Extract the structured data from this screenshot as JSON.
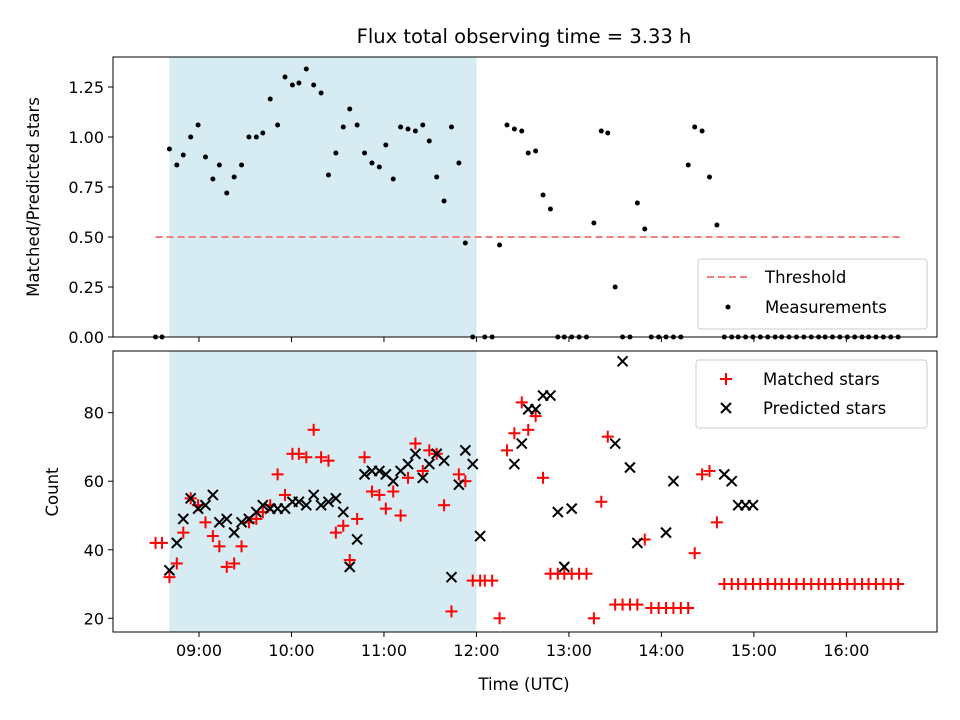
{
  "chart_data": [
    {
      "type": "scatter",
      "title": "Flux total observing time = 3.33 h",
      "ylabel": "Matched/Predicted stars",
      "xlabel": "",
      "xlim": [
        8.07,
        16.98
      ],
      "ylim": [
        0,
        1.4
      ],
      "y_ticks": [
        0.0,
        0.25,
        0.5,
        0.75,
        1.0,
        1.25
      ],
      "y_tick_labels": [
        "0.00",
        "0.25",
        "0.50",
        "0.75",
        "1.00",
        "1.25"
      ],
      "shaded_interval": [
        8.68,
        12.0
      ],
      "shaded_color": "#add8e6",
      "legend_position": "lower-right",
      "threshold": {
        "name": "Threshold",
        "value": 0.5,
        "x_range": [
          8.53,
          16.6
        ],
        "color": "#f08080"
      },
      "series": [
        {
          "name": "Measurements",
          "color": "#000000",
          "marker": "dot",
          "x": [
            8.53,
            8.6,
            8.68,
            8.76,
            8.83,
            8.91,
            8.99,
            9.07,
            9.15,
            9.22,
            9.3,
            9.38,
            9.46,
            9.54,
            9.62,
            9.69,
            9.77,
            9.85,
            9.93,
            10.01,
            10.08,
            10.16,
            10.24,
            10.32,
            10.4,
            10.48,
            10.56,
            10.63,
            10.71,
            10.79,
            10.87,
            10.95,
            11.02,
            11.1,
            11.18,
            11.26,
            11.34,
            11.42,
            11.49,
            11.57,
            11.65,
            11.73,
            11.81,
            11.88,
            11.96,
            12.09,
            12.17,
            12.25,
            12.33,
            12.41,
            12.49,
            12.56,
            12.64,
            12.72,
            12.8,
            12.88,
            12.95,
            13.03,
            13.11,
            13.19,
            13.27,
            13.35,
            13.42,
            13.5,
            13.58,
            13.66,
            13.74,
            13.82,
            13.89,
            13.97,
            14.05,
            14.13,
            14.21,
            14.29,
            14.36,
            14.44,
            14.52,
            14.6,
            14.68,
            14.76,
            14.83,
            14.91,
            14.99,
            15.07,
            15.15,
            15.23,
            15.3,
            15.38,
            15.46,
            15.54,
            15.62,
            15.7,
            15.77,
            15.85,
            15.93,
            16.01,
            16.09,
            16.17,
            16.24,
            16.32,
            16.4,
            16.48,
            16.56
          ],
          "y": [
            0,
            0,
            0.94,
            0.86,
            0.91,
            1.0,
            1.06,
            0.9,
            0.79,
            0.86,
            0.72,
            0.8,
            0.86,
            1.0,
            1.0,
            1.02,
            1.19,
            1.06,
            1.3,
            1.26,
            1.27,
            1.34,
            1.26,
            1.22,
            0.81,
            0.92,
            1.05,
            1.14,
            1.06,
            0.92,
            0.87,
            0.85,
            0.96,
            0.79,
            1.05,
            1.04,
            1.03,
            1.06,
            0.98,
            0.8,
            0.68,
            1.05,
            0.87,
            0.47,
            0,
            0,
            0,
            0.46,
            1.06,
            1.04,
            1.03,
            0.92,
            0.93,
            0.71,
            0.64,
            0,
            0,
            0,
            0,
            0,
            0.57,
            1.03,
            1.02,
            0.25,
            0,
            0,
            0.67,
            0.54,
            0,
            0,
            0,
            0,
            0,
            0.86,
            1.05,
            1.03,
            0.8,
            0.56,
            0,
            0,
            0,
            0,
            0,
            0,
            0,
            0,
            0,
            0,
            0,
            0,
            0,
            0,
            0,
            0,
            0,
            0,
            0,
            0,
            0,
            0,
            0,
            0,
            0
          ]
        }
      ]
    },
    {
      "type": "scatter",
      "title": "",
      "xlabel": "Time (UTC)",
      "ylabel": "Count",
      "xlim": [
        8.07,
        16.98
      ],
      "ylim": [
        16,
        98
      ],
      "x_ticks": [
        9,
        10,
        11,
        12,
        13,
        14,
        15,
        16
      ],
      "x_tick_labels": [
        "09:00",
        "10:00",
        "11:00",
        "12:00",
        "13:00",
        "14:00",
        "15:00",
        "16:00"
      ],
      "y_ticks": [
        20,
        40,
        60,
        80
      ],
      "y_tick_labels": [
        "20",
        "40",
        "60",
        "80"
      ],
      "shaded_interval": [
        8.68,
        12.0
      ],
      "shaded_color": "#add8e6",
      "legend_position": "top-right",
      "series": [
        {
          "name": "Matched stars",
          "color": "#ff0000",
          "marker": "plus",
          "x": [
            8.53,
            8.6,
            8.68,
            8.76,
            8.83,
            8.91,
            8.99,
            9.07,
            9.15,
            9.22,
            9.3,
            9.38,
            9.46,
            9.54,
            9.62,
            9.69,
            9.77,
            9.85,
            9.93,
            10.01,
            10.08,
            10.16,
            10.24,
            10.32,
            10.4,
            10.48,
            10.56,
            10.63,
            10.71,
            10.79,
            10.87,
            10.95,
            11.02,
            11.1,
            11.18,
            11.26,
            11.34,
            11.42,
            11.49,
            11.57,
            11.65,
            11.73,
            11.81,
            11.88,
            11.96,
            12.04,
            12.09,
            12.17,
            12.25,
            12.33,
            12.41,
            12.49,
            12.56,
            12.64,
            12.72,
            12.8,
            12.88,
            12.95,
            13.03,
            13.11,
            13.19,
            13.27,
            13.35,
            13.42,
            13.5,
            13.58,
            13.66,
            13.74,
            13.82,
            13.89,
            13.97,
            14.05,
            14.13,
            14.21,
            14.29,
            14.36,
            14.44,
            14.52,
            14.6,
            14.68,
            14.76,
            14.83,
            14.91,
            14.99,
            15.07,
            15.15,
            15.23,
            15.3,
            15.38,
            15.46,
            15.54,
            15.62,
            15.7,
            15.77,
            15.85,
            15.93,
            16.01,
            16.09,
            16.17,
            16.24,
            16.32,
            16.4,
            16.48,
            16.56
          ],
          "y": [
            42,
            42,
            32,
            36,
            45,
            55,
            53,
            48,
            44,
            41,
            35,
            36,
            41,
            48,
            49,
            51,
            53,
            62,
            56,
            68,
            68,
            67,
            75,
            67,
            66,
            45,
            47,
            37,
            49,
            67,
            57,
            56,
            52,
            57,
            50,
            61,
            71,
            63,
            69,
            68,
            53,
            22,
            62,
            60,
            31,
            31,
            31,
            31,
            20,
            69,
            74,
            83,
            75,
            79,
            61,
            33,
            33,
            33,
            33,
            33,
            33,
            20,
            54,
            73,
            24,
            24,
            24,
            24,
            43,
            23,
            23,
            23,
            23,
            23,
            23,
            39,
            62,
            63,
            48,
            30,
            30,
            30,
            30,
            30,
            30,
            30,
            30,
            30,
            30,
            30,
            30,
            30,
            30,
            30,
            30,
            30,
            30,
            30,
            30,
            30,
            30,
            30,
            30,
            30
          ]
        },
        {
          "name": "Predicted stars",
          "color": "#000000",
          "marker": "x",
          "x": [
            8.68,
            8.76,
            8.83,
            8.91,
            8.99,
            9.07,
            9.15,
            9.22,
            9.3,
            9.38,
            9.46,
            9.54,
            9.62,
            9.69,
            9.77,
            9.85,
            9.93,
            10.01,
            10.08,
            10.16,
            10.24,
            10.32,
            10.4,
            10.48,
            10.56,
            10.63,
            10.71,
            10.79,
            10.87,
            10.95,
            11.02,
            11.1,
            11.18,
            11.26,
            11.34,
            11.42,
            11.49,
            11.57,
            11.65,
            11.73,
            11.81,
            11.88,
            11.96,
            12.04,
            12.41,
            12.49,
            12.56,
            12.64,
            12.72,
            12.8,
            12.88,
            12.95,
            13.03,
            13.5,
            13.58,
            13.66,
            13.74,
            14.05,
            14.13,
            14.68,
            14.76,
            14.83,
            14.91,
            14.99
          ],
          "y": [
            34,
            42,
            49,
            55,
            52,
            53,
            56,
            48,
            49,
            45,
            48,
            49,
            51,
            53,
            52,
            52,
            52,
            54,
            54,
            53,
            56,
            53,
            54,
            55,
            51,
            35,
            43,
            62,
            63,
            63,
            62,
            60,
            63,
            65,
            68,
            61,
            65,
            68,
            66,
            32,
            59,
            69,
            65,
            44,
            65,
            71,
            81,
            81,
            85,
            85,
            51,
            35,
            52,
            71,
            95,
            64,
            42,
            45,
            60,
            62,
            60,
            53,
            53,
            53
          ]
        }
      ]
    }
  ]
}
